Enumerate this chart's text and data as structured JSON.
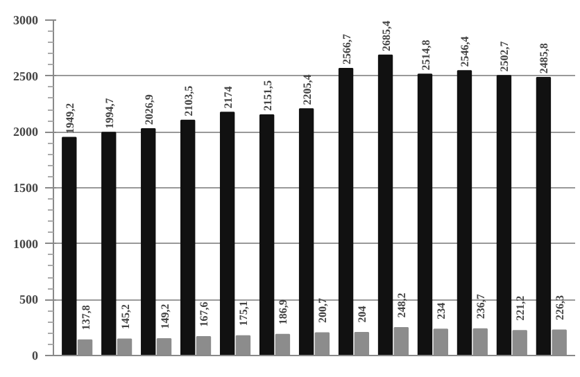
{
  "chart_data": {
    "type": "bar",
    "categories": [
      null,
      null,
      null,
      null,
      null,
      null,
      null,
      null,
      null,
      null,
      null,
      null,
      null
    ],
    "series": [
      {
        "color": "#111111",
        "values": [
          1949.2,
          1994.7,
          2026.9,
          2103.5,
          2174,
          2151.5,
          2205.4,
          2566.7,
          2685.4,
          2514.8,
          2546.4,
          2502.7,
          2485.8
        ],
        "value_labels": [
          "1949,2",
          "1994,7",
          "2026,9",
          "2103,5",
          "2174",
          "2151,5",
          "2205,4",
          "2566,7",
          "2685,4",
          "2514,8",
          "2546,4",
          "2502,7",
          "2485,8"
        ]
      },
      {
        "color": "#8c8c8c",
        "values": [
          137.8,
          145.2,
          149.2,
          167.6,
          175.1,
          186.9,
          200.7,
          204,
          248.2,
          234,
          236.7,
          221.2,
          226.3
        ],
        "value_labels": [
          "137,8",
          "145,2",
          "149,2",
          "167,6",
          "175,1",
          "186,9",
          "200,7",
          "204",
          "248,2",
          "234",
          "236,7",
          "221,2",
          "226,3"
        ]
      }
    ],
    "ylim": [
      0,
      3000
    ],
    "yticks": [
      0,
      500,
      1000,
      1500,
      2000,
      2500,
      3000
    ],
    "grid": "y",
    "tick_labels": "y"
  }
}
